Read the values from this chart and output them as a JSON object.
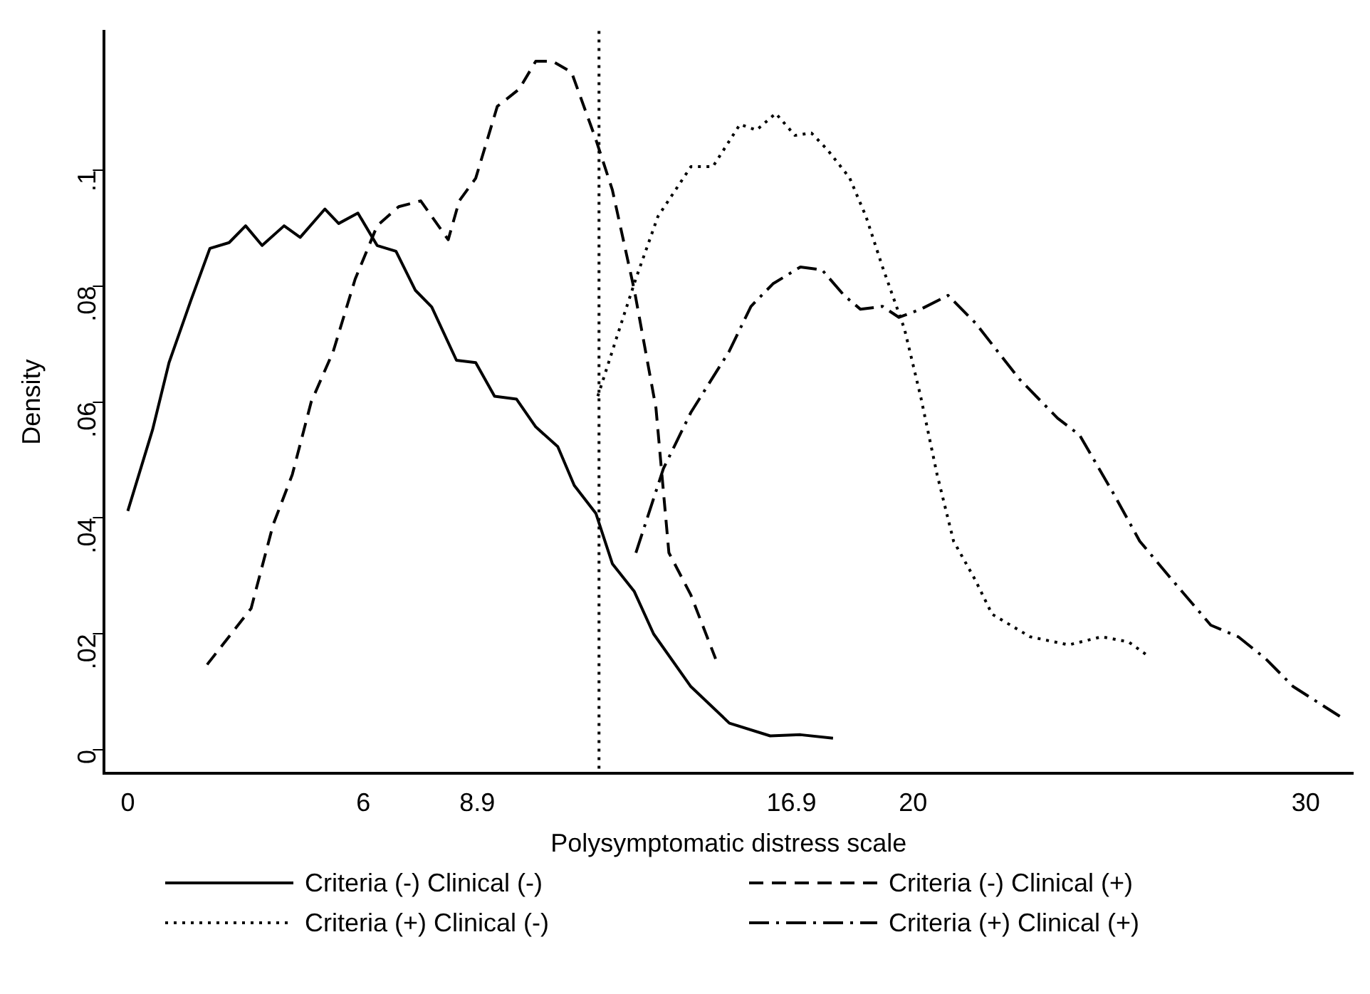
{
  "chart_data": {
    "type": "line",
    "xlabel": "Polysymptomatic distress scale",
    "ylabel": "Density",
    "xlim": [
      -0.6,
      31.2
    ],
    "ylim": [
      -0.004,
      0.124
    ],
    "xticks": [
      0,
      6,
      8.9,
      16.9,
      20,
      30
    ],
    "yticks": [
      0,
      {
        "value": 0.02,
        "label": ".02"
      },
      {
        "value": 0.04,
        "label": ".04"
      },
      {
        "value": 0.06,
        "label": ".06"
      },
      {
        "value": 0.08,
        "label": ".08"
      },
      {
        "value": 0.1,
        "label": ".1"
      }
    ],
    "grid": false,
    "legend": "bottom",
    "marker": "none",
    "ref_lines": [
      {
        "axis": "x",
        "value": 12,
        "color": "#000000",
        "line_style": "dotted"
      }
    ],
    "series": [
      {
        "name": "Criteria (-) Clinical (-)",
        "color": "#000000",
        "line_style": "solid",
        "x": [
          0,
          0.63,
          1.05,
          1.6,
          2.09,
          2.58,
          3.0,
          3.42,
          3.98,
          4.39,
          5.02,
          5.37,
          5.86,
          6.35,
          6.83,
          7.32,
          7.74,
          8.37,
          8.86,
          9.34,
          9.9,
          10.39,
          10.95,
          11.37,
          11.92,
          12.34,
          12.9,
          13.39,
          14.34,
          15.32,
          16.36,
          17.13,
          17.96
        ],
        "values": [
          0.0412,
          0.0552,
          0.0668,
          0.0774,
          0.0865,
          0.0875,
          0.0904,
          0.087,
          0.0904,
          0.0884,
          0.0933,
          0.0908,
          0.0926,
          0.087,
          0.086,
          0.0793,
          0.0764,
          0.0672,
          0.0668,
          0.061,
          0.0605,
          0.0557,
          0.0523,
          0.0456,
          0.0408,
          0.0321,
          0.0273,
          0.02,
          0.0109,
          0.0046,
          0.0024,
          0.0026,
          0.002
        ]
      },
      {
        "name": "Criteria (-) Clinical (+)",
        "color": "#000000",
        "line_style": "dashed",
        "x": [
          2.02,
          3.14,
          3.7,
          4.19,
          4.67,
          5.23,
          5.79,
          6.35,
          6.9,
          7.46,
          8.16,
          8.44,
          8.86,
          9.41,
          9.97,
          10.39,
          10.81,
          11.3,
          11.92,
          12.34,
          12.9,
          13.45,
          13.78,
          14.34,
          14.97
        ],
        "values": [
          0.0147,
          0.0244,
          0.0388,
          0.0475,
          0.06,
          0.0687,
          0.0812,
          0.0904,
          0.0937,
          0.0947,
          0.088,
          0.0947,
          0.0986,
          0.111,
          0.114,
          0.1188,
          0.1188,
          0.1169,
          0.1053,
          0.0966,
          0.0793,
          0.059,
          0.034,
          0.0267,
          0.0157
        ]
      },
      {
        "name": "Criteria (+) Clinical (-)",
        "color": "#000000",
        "line_style": "dotted",
        "x": [
          11.97,
          12.52,
          12.94,
          13.5,
          14.34,
          14.9,
          15.59,
          16.01,
          16.5,
          16.99,
          17.41,
          17.82,
          18.38,
          18.8,
          19.22,
          19.78,
          20.19,
          20.61,
          21.03,
          21.59,
          22.01,
          22.98,
          23.96,
          24.8,
          25.49,
          25.98
        ],
        "values": [
          0.061,
          0.0726,
          0.0813,
          0.092,
          0.1006,
          0.1006,
          0.1079,
          0.1069,
          0.1098,
          0.106,
          0.1064,
          0.1035,
          0.0987,
          0.092,
          0.0833,
          0.0726,
          0.061,
          0.0475,
          0.036,
          0.0292,
          0.0234,
          0.0195,
          0.0181,
          0.0195,
          0.0186,
          0.0162
        ]
      },
      {
        "name": "Criteria (+) Clinical (+)",
        "color": "#000000",
        "line_style": "dashdot",
        "x": [
          12.94,
          13.64,
          14.34,
          15.32,
          15.87,
          16.43,
          17.13,
          17.68,
          18.24,
          18.66,
          19.22,
          19.64,
          20.19,
          20.89,
          21.59,
          22.7,
          23.68,
          24.24,
          25.07,
          25.77,
          26.61,
          27.58,
          28.28,
          28.98,
          29.68,
          30.93
        ],
        "values": [
          0.034,
          0.0485,
          0.0582,
          0.0688,
          0.0765,
          0.0804,
          0.0833,
          0.0828,
          0.0784,
          0.076,
          0.0765,
          0.0746,
          0.076,
          0.0784,
          0.0736,
          0.064,
          0.0572,
          0.0543,
          0.0446,
          0.036,
          0.0292,
          0.0215,
          0.0195,
          0.0157,
          0.0109,
          0.0055
        ]
      }
    ]
  }
}
